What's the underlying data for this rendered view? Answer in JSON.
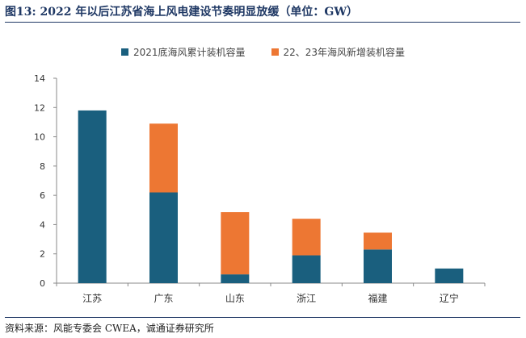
{
  "figure": {
    "title": "图13:   2022 年以后江苏省海上风电建设节奏明显放缓（单位：GW）",
    "source": "资料来源：风能专委会 CWEA，诚通证券研究所"
  },
  "chart_data": {
    "type": "bar",
    "stacked": true,
    "title": "2022 年以后江苏省海上风电建设节奏明显放缓（单位：GW）",
    "categories": [
      "江苏",
      "广东",
      "山东",
      "浙江",
      "福建",
      "辽宁"
    ],
    "series": [
      {
        "name": "2021底海风累计装机容量",
        "color": "#1a5f7e",
        "values": [
          11.8,
          6.2,
          0.6,
          1.9,
          2.3,
          1.0
        ]
      },
      {
        "name": "22、23年海风新增装机容量",
        "color": "#ed7733",
        "values": [
          0.0,
          4.7,
          4.25,
          2.5,
          1.15,
          0.0
        ]
      }
    ],
    "yticks": [
      "0",
      "2",
      "4",
      "6",
      "8",
      "10",
      "12",
      "14"
    ],
    "ylim": [
      0,
      14
    ],
    "grid": false,
    "legend": "top-center"
  }
}
